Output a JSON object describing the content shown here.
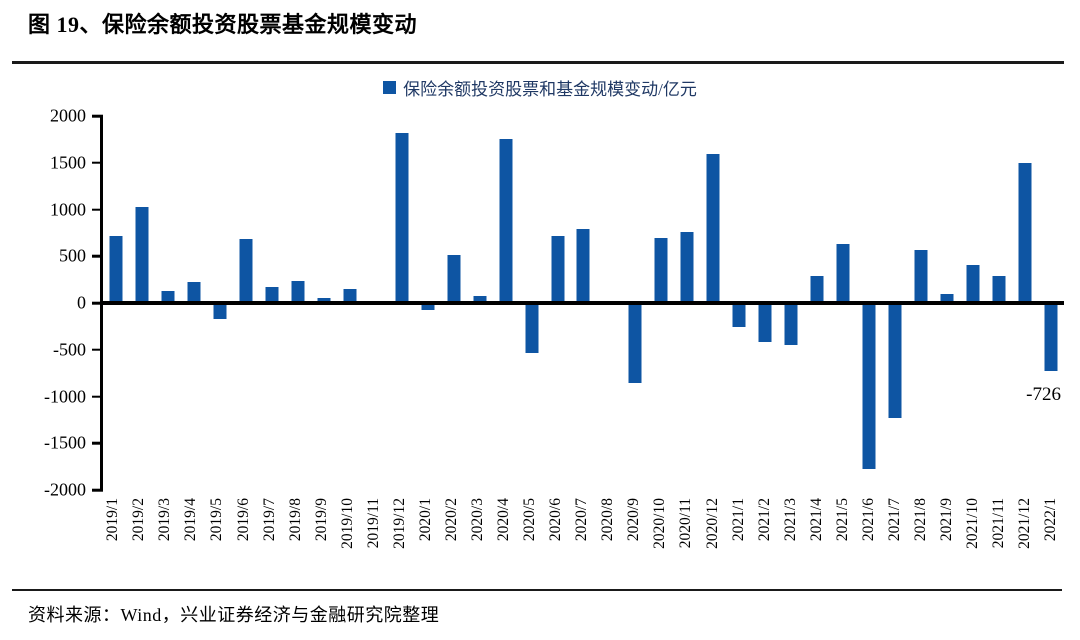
{
  "title": "图 19、保险余额投资股票基金规模变动",
  "source": "资料来源：Wind，兴业证券经济与金融研究院整理",
  "colors": {
    "bar": "#0E55A3",
    "legend_text": "#1F3864",
    "axis": "#000000"
  },
  "chart_data": {
    "type": "bar",
    "legend": "保险余额投资股票和基金规模变动/亿元",
    "legend_position": "top-center",
    "grid": false,
    "ylim": [
      -2000,
      2000
    ],
    "y_ticks": [
      2000,
      1500,
      1000,
      500,
      0,
      -500,
      -1000,
      -1500,
      -2000
    ],
    "categories": [
      "2019/1",
      "2019/2",
      "2019/3",
      "2019/4",
      "2019/5",
      "2019/6",
      "2019/7",
      "2019/8",
      "2019/9",
      "2019/10",
      "2019/11",
      "2019/12",
      "2020/1",
      "2020/2",
      "2020/3",
      "2020/4",
      "2020/5",
      "2020/6",
      "2020/7",
      "2020/8",
      "2020/9",
      "2020/10",
      "2020/11",
      "2020/12",
      "2021/1",
      "2021/2",
      "2021/3",
      "2021/4",
      "2021/5",
      "2021/6",
      "2021/7",
      "2021/8",
      "2021/9",
      "2021/10",
      "2021/11",
      "2021/12",
      "2022/1"
    ],
    "values": [
      720,
      1030,
      130,
      230,
      -170,
      680,
      175,
      235,
      50,
      150,
      0,
      1820,
      -70,
      510,
      70,
      1750,
      -540,
      720,
      790,
      0,
      -860,
      700,
      760,
      1590,
      -260,
      -420,
      -450,
      290,
      630,
      -1780,
      -1230,
      570,
      100,
      410,
      290,
      1500,
      -726
    ],
    "annotation": {
      "text": "-726",
      "target": "2022/1"
    }
  }
}
